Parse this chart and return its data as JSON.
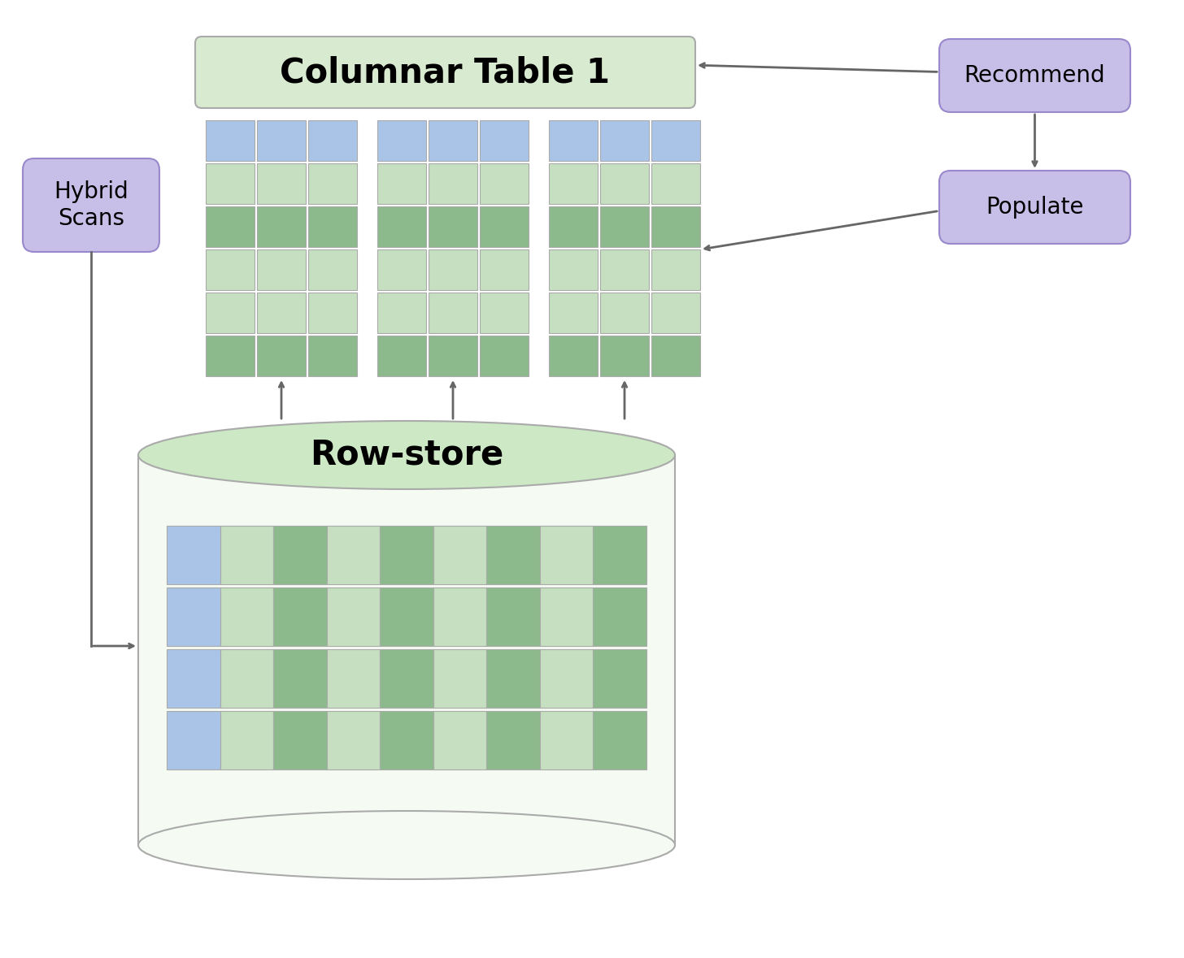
{
  "bg_color": "#ffffff",
  "col_table_label": "Columnar Table 1",
  "rowstore_label": "Row-store",
  "hybrid_label": "Hybrid\nScans",
  "recommend_label": "Recommend",
  "populate_label": "Populate",
  "col_header_green": "#d8ead0",
  "col_blue_cell": "#aac4e8",
  "col_green_light": "#c5dfc0",
  "col_green_dark": "#8dba8d",
  "col_purple_box": "#c8bfe8",
  "col_purple_edge": "#9988cc",
  "col_gray_border": "#aaaaaa",
  "col_arrow": "#666666",
  "col_cyl_top": "#cce8c4",
  "col_cyl_body_bg": "#f5fbf3",
  "figsize": [
    14.56,
    11.79
  ],
  "dpi": 100
}
